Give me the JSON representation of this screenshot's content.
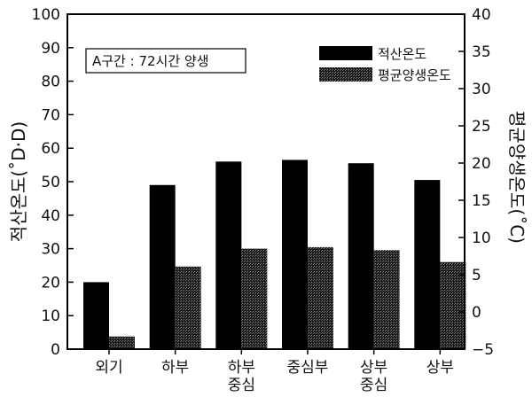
{
  "chart_data": {
    "type": "bar",
    "categories": [
      [
        "외기"
      ],
      [
        "하부"
      ],
      [
        "하부",
        "중심"
      ],
      [
        "중심부"
      ],
      [
        "상부",
        "중심"
      ],
      [
        "상부"
      ]
    ],
    "series": [
      {
        "name": "적산온도",
        "axis": "left",
        "color": "#000000",
        "values": [
          20,
          49,
          56,
          56.5,
          55.5,
          50.5
        ]
      },
      {
        "name": "평균양생온도",
        "axis": "right",
        "color": "#2a2a2a",
        "values": [
          -3.3,
          6.1,
          8.5,
          8.7,
          8.3,
          6.7
        ]
      }
    ],
    "ylabel": "적산온도(˚D·D)",
    "y2label": "평균양생온도(˚C)",
    "ylim": [
      0,
      100
    ],
    "y2lim": [
      -5,
      40
    ],
    "yticks": [
      0,
      10,
      20,
      30,
      40,
      50,
      60,
      70,
      80,
      90,
      100
    ],
    "y2ticks": [
      -5,
      0,
      5,
      10,
      15,
      20,
      25,
      30,
      35,
      40
    ],
    "annotation": "A구간 : 72시간 양생",
    "legend_position": "top-right",
    "grid": false
  }
}
